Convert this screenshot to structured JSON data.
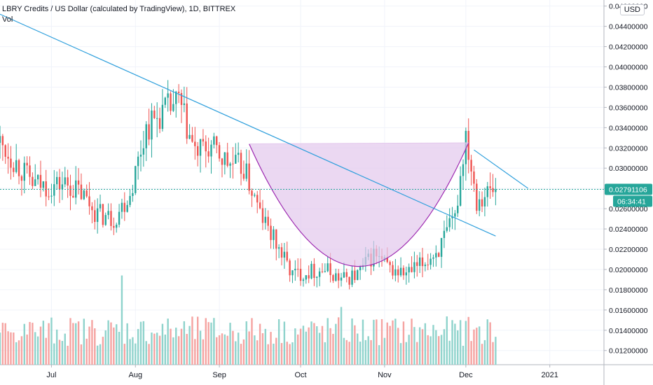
{
  "header": {
    "title": "LBRY Credits / US Dollar (calculated by TradingView), 1D, BITTREX",
    "volume_label": "Vol"
  },
  "currency_button": "USD",
  "price_label": "0.02791106",
  "countdown_label": "06:34:41",
  "colors": {
    "up": "#26a69a",
    "down": "#ef5350",
    "up_volume": "#8fd3cc",
    "down_volume": "#f5a3a1",
    "trendline": "#2e9fdc",
    "pattern_fill": "#e3c7ec",
    "pattern_stroke": "#9c27b0",
    "current_price": "#26a69a"
  },
  "chart_data": {
    "type": "candlestick",
    "title": "LBRY Credits / US Dollar (calculated by TradingView), 1D, BITTREX",
    "x_tick_labels": [
      "Jul",
      "Aug",
      "Sep",
      "Oct",
      "Nov",
      "Dec",
      "2021"
    ],
    "y_tick_labels": [
      "0.01200000",
      "0.01400000",
      "0.01600000",
      "0.01800000",
      "0.02000000",
      "0.02200000",
      "0.02400000",
      "0.02600000",
      "0.02800000",
      "0.03000000",
      "0.03200000",
      "0.03400000",
      "0.03600000",
      "0.03800000",
      "0.04000000",
      "0.04200000",
      "0.04400000",
      "0.04600000"
    ],
    "ylim": [
      0.0106,
      0.0466
    ],
    "x_range": [
      "2020-06-12",
      "2021-01-21"
    ],
    "current_price": 0.02791106,
    "close_anchors": [
      [
        "2020-06-12",
        0.0325
      ],
      [
        "2020-06-18",
        0.0305
      ],
      [
        "2020-06-24",
        0.0285
      ],
      [
        "2020-06-30",
        0.0282
      ],
      [
        "2020-07-06",
        0.0285
      ],
      [
        "2020-07-12",
        0.0275
      ],
      [
        "2020-07-18",
        0.0255
      ],
      [
        "2020-07-24",
        0.025
      ],
      [
        "2020-07-30",
        0.0275
      ],
      [
        "2020-08-05",
        0.034
      ],
      [
        "2020-08-11",
        0.0355
      ],
      [
        "2020-08-17",
        0.0365
      ],
      [
        "2020-08-23",
        0.0315
      ],
      [
        "2020-08-29",
        0.032
      ],
      [
        "2020-09-04",
        0.0305
      ],
      [
        "2020-09-10",
        0.03
      ],
      [
        "2020-09-16",
        0.0255
      ],
      [
        "2020-09-22",
        0.0225
      ],
      [
        "2020-09-28",
        0.0195
      ],
      [
        "2020-10-04",
        0.0198
      ],
      [
        "2020-10-10",
        0.02
      ],
      [
        "2020-10-16",
        0.019
      ],
      [
        "2020-10-22",
        0.0195
      ],
      [
        "2020-10-28",
        0.0215
      ],
      [
        "2020-11-03",
        0.02
      ],
      [
        "2020-11-09",
        0.0195
      ],
      [
        "2020-11-15",
        0.0205
      ],
      [
        "2020-11-21",
        0.022
      ],
      [
        "2020-11-27",
        0.025
      ],
      [
        "2020-12-01",
        0.0335
      ],
      [
        "2020-12-05",
        0.027
      ],
      [
        "2020-12-08",
        0.0275
      ],
      [
        "2020-12-12",
        0.0279
      ]
    ],
    "volume_peaks": [
      [
        "2020-07-27",
        0.85
      ],
      [
        "2020-10-16",
        0.55
      ]
    ],
    "annotations": {
      "trendline_upper": [
        [
          "2020-06-12",
          0.0452
        ],
        [
          "2020-12-12",
          0.0233
        ]
      ],
      "trendline_lower": [
        [
          "2020-12-04",
          0.0318
        ],
        [
          "2020-12-24",
          0.028
        ]
      ],
      "cup": {
        "left": [
          "2020-09-12",
          0.0324
        ],
        "right": [
          "2020-12-02",
          0.0325
        ],
        "bottom": 0.0203
      }
    }
  }
}
